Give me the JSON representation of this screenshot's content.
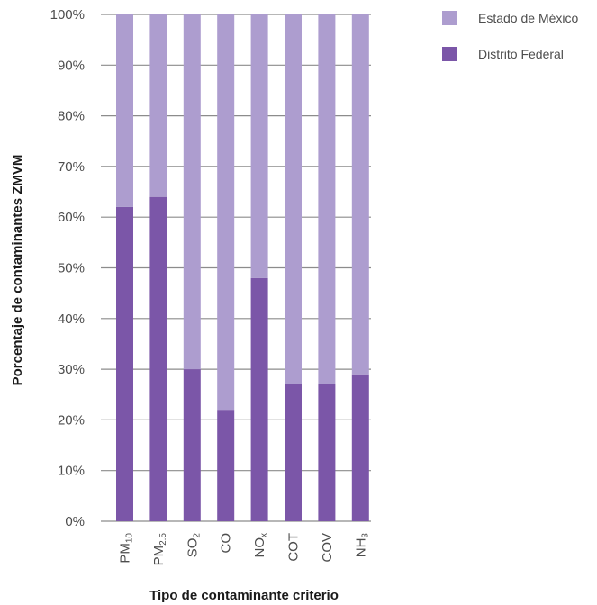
{
  "chart_data": {
    "type": "bar",
    "stacked": true,
    "categories": [
      {
        "base": "PM",
        "sub": "10"
      },
      {
        "base": "PM",
        "sub": "2.5"
      },
      {
        "base": "SO",
        "sub": "2"
      },
      {
        "base": "CO",
        "sub": ""
      },
      {
        "base": "NO",
        "sub": "x"
      },
      {
        "base": "COT",
        "sub": ""
      },
      {
        "base": "COV",
        "sub": ""
      },
      {
        "base": "NH",
        "sub": "3"
      }
    ],
    "series": [
      {
        "name": "Distrito Federal",
        "color": "#7b56a8",
        "values": [
          62,
          64,
          30,
          22,
          48,
          27,
          27,
          29
        ]
      },
      {
        "name": "Estado de México",
        "color": "#ad9dcf",
        "values": [
          38,
          36,
          70,
          78,
          52,
          73,
          73,
          71
        ]
      }
    ],
    "yticks": [
      "0%",
      "10%",
      "20%",
      "30%",
      "40%",
      "50%",
      "60%",
      "70%",
      "80%",
      "90%",
      "100%"
    ],
    "ylim": [
      0,
      100
    ],
    "xlabel": "Tipo de contaminante criterio",
    "ylabel": "Porcentaje de contaminantes ZMVM",
    "grid": true,
    "legend_position": "top-right",
    "legend_order": [
      "Estado de México",
      "Distrito Federal"
    ],
    "gridline_color": "#8c8c8c"
  }
}
